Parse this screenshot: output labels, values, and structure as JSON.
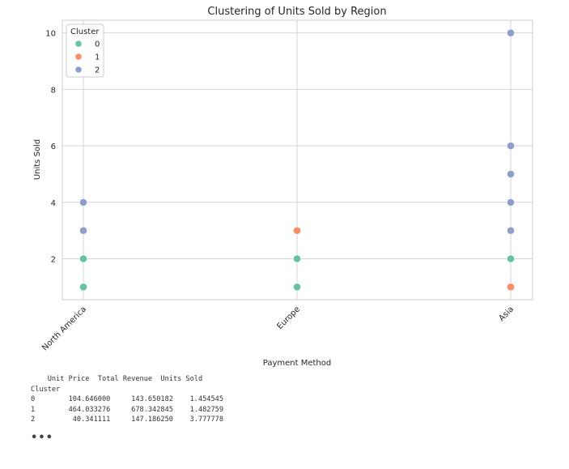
{
  "chart_data": {
    "type": "scatter",
    "title": "Clustering of Units Sold by Region",
    "xlabel": "Payment Method",
    "ylabel": "Units Sold",
    "categories": [
      "North America",
      "Europe",
      "Asia"
    ],
    "yticks": [
      2,
      4,
      6,
      8,
      10
    ],
    "ylim": [
      0.55,
      10.45
    ],
    "grid": true,
    "legend": {
      "title": "Cluster",
      "placement": "top-left",
      "entries": [
        "0",
        "1",
        "2"
      ]
    },
    "series": [
      {
        "name": "0",
        "color": "#66c2a5",
        "points": [
          {
            "x": "North America",
            "y": 1
          },
          {
            "x": "North America",
            "y": 2
          },
          {
            "x": "Europe",
            "y": 1
          },
          {
            "x": "Europe",
            "y": 2
          },
          {
            "x": "Asia",
            "y": 2
          }
        ]
      },
      {
        "name": "1",
        "color": "#fc8d62",
        "points": [
          {
            "x": "Europe",
            "y": 3
          },
          {
            "x": "Asia",
            "y": 1
          }
        ]
      },
      {
        "name": "2",
        "color": "#8da0cb",
        "points": [
          {
            "x": "North America",
            "y": 3
          },
          {
            "x": "North America",
            "y": 4
          },
          {
            "x": "Asia",
            "y": 3
          },
          {
            "x": "Asia",
            "y": 4
          },
          {
            "x": "Asia",
            "y": 5
          },
          {
            "x": "Asia",
            "y": 6
          },
          {
            "x": "Asia",
            "y": 10
          }
        ]
      }
    ]
  },
  "output_table": {
    "header": "    Unit Price  Total Revenue  Units Sold",
    "index_name": "Cluster",
    "rows": [
      "0        104.646000     143.650182    1.454545",
      "1        464.033276     678.342845    1.482759",
      "2         40.341111     147.186250    3.777778"
    ]
  },
  "ellipsis": "•••"
}
